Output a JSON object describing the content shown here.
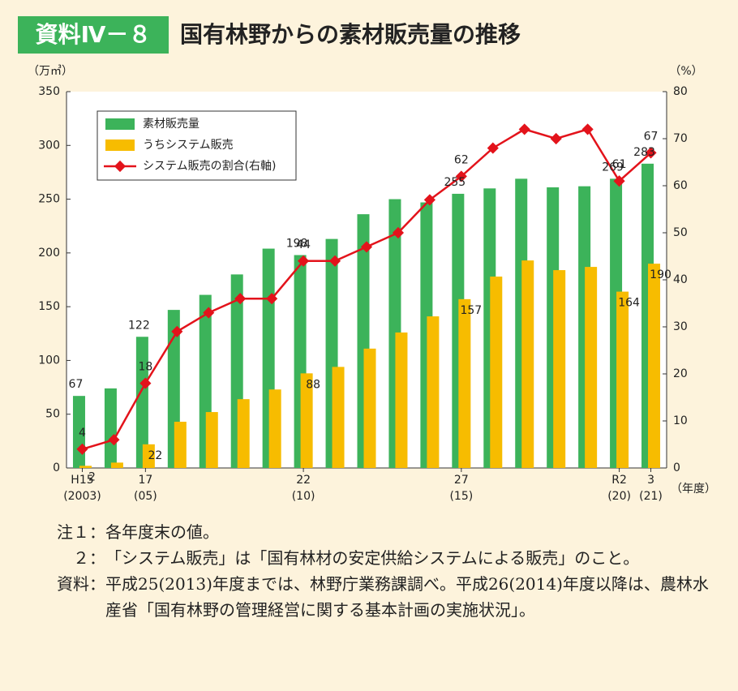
{
  "header": {
    "badge": "資料Ⅳ－８",
    "title": "国有林野からの素材販売量の推移"
  },
  "chart_data": {
    "type": "bar-line",
    "y_unit": "（万㎥）",
    "y2_unit": "（%）",
    "x_unit": "（年度）",
    "categories": [
      "H15",
      null,
      "17",
      null,
      null,
      null,
      null,
      "22",
      null,
      null,
      null,
      null,
      "27",
      null,
      null,
      null,
      null,
      "R2",
      "3"
    ],
    "category_years": [
      "(2003)",
      null,
      "(05)",
      null,
      null,
      null,
      null,
      "(10)",
      null,
      null,
      null,
      null,
      "(15)",
      null,
      null,
      null,
      null,
      "(20)",
      "(21)"
    ],
    "series": [
      {
        "name": "素材販売量",
        "color": "#3cb35a",
        "type": "bar",
        "values": [
          67,
          74,
          122,
          147,
          161,
          180,
          204,
          198,
          213,
          236,
          250,
          247,
          255,
          260,
          269,
          261,
          262,
          269,
          283
        ]
      },
      {
        "name": "うちシステム販売",
        "color": "#f7bc00",
        "type": "bar",
        "values": [
          2,
          5,
          22,
          43,
          52,
          64,
          73,
          88,
          94,
          111,
          126,
          141,
          157,
          178,
          193,
          184,
          187,
          164,
          190
        ]
      },
      {
        "name": "システム販売の割合(右軸)",
        "color": "#e3131b",
        "type": "line",
        "axis": "y2",
        "values": [
          4,
          6,
          18,
          29,
          33,
          36,
          36,
          44,
          44,
          47,
          50,
          57,
          62,
          68,
          72,
          70,
          72,
          61,
          67
        ]
      }
    ],
    "ylim": [
      0,
      350
    ],
    "yticks": [
      0,
      50,
      100,
      150,
      200,
      250,
      300,
      350
    ],
    "y2lim": [
      0,
      80
    ],
    "y2ticks": [
      0,
      10,
      20,
      30,
      40,
      50,
      60,
      70,
      80
    ]
  },
  "notes": [
    {
      "label": "注１：",
      "text": "各年度末の値。"
    },
    {
      "label": "２：",
      "text": "「システム販売」は「国有林材の安定供給システムによる販売」のこと。"
    },
    {
      "label": "資料：",
      "text": "平成25(2013)年度までは、林野庁業務課調べ。平成26(2014)年度以降は、農林水産省「国有林野の管理経営に関する基本計画の実施状況」。"
    }
  ]
}
